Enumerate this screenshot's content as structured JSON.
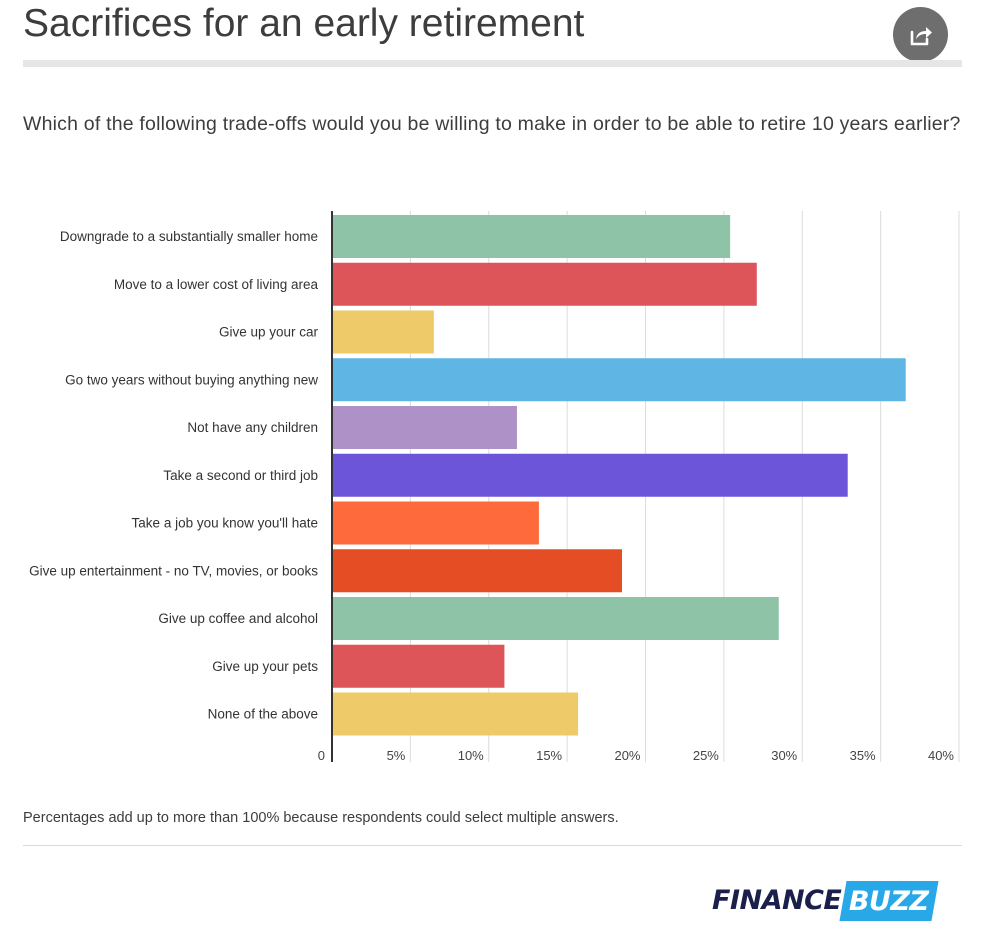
{
  "page": {
    "title": "Sacrifices for an early retirement",
    "subtitle": "Which of the following trade-offs would you be willing to make in order to be able to retire 10 years earlier?",
    "footnote": "Percentages add up to more than 100% because respondents could select multiple answers.",
    "share_icon": "share-icon",
    "logo": {
      "part1": "FINANCE",
      "part2": "BUZZ",
      "colors": {
        "part1": "#1b1f4b",
        "part2_bg": "#29a8e8",
        "part2_text": "#ffffff"
      }
    }
  },
  "chart_data": {
    "type": "bar",
    "orientation": "horizontal",
    "categories": [
      "Downgrade to a substantially smaller home",
      "Move to a lower cost of living area",
      "Give up your car",
      "Go two years without buying anything new",
      "Not have any children",
      "Take a second or third job",
      "Take a job you know you'll hate",
      "Give up entertainment - no TV, movies, or books",
      "Give up coffee and alcohol",
      "Give up your pets",
      "None of the above"
    ],
    "values": [
      25.4,
      27.1,
      6.5,
      36.6,
      11.8,
      32.9,
      13.2,
      18.5,
      28.5,
      11.0,
      15.7
    ],
    "colors": [
      "#8fc3a8",
      "#dd5559",
      "#eecb68",
      "#5fb6e5",
      "#ad91c7",
      "#6d55da",
      "#ff6a3c",
      "#e54e24",
      "#8fc3a8",
      "#dd5559",
      "#eecb68"
    ],
    "xlim": [
      0,
      40
    ],
    "xticks": [
      "0",
      "5%",
      "10%",
      "15%",
      "20%",
      "25%",
      "30%",
      "35%",
      "40%"
    ],
    "xtick_values": [
      0,
      5,
      10,
      15,
      20,
      25,
      30,
      35,
      40
    ],
    "grid": true,
    "legend": "none"
  }
}
